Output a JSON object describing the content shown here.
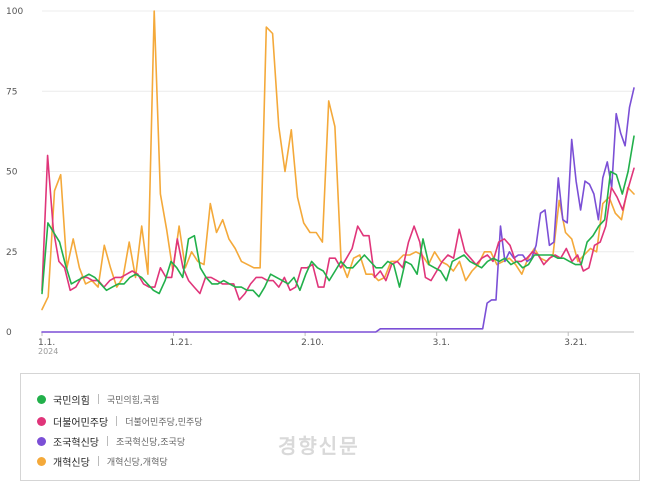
{
  "chart_data": {
    "type": "line",
    "title": "",
    "xlabel": "",
    "ylabel": "",
    "ylim": [
      0,
      100
    ],
    "y_ticks": [
      0,
      25,
      50,
      75,
      100
    ],
    "x_range": [
      "2024-01-01",
      "2024-03-31"
    ],
    "x_ticks": [
      {
        "date": "2024-01-01",
        "label": "1.1.",
        "sublabel": "2024"
      },
      {
        "date": "2024-01-21",
        "label": "1.21."
      },
      {
        "date": "2024-02-10",
        "label": "2.10."
      },
      {
        "date": "2024-03-01",
        "label": "3.1."
      },
      {
        "date": "2024-03-21",
        "label": "3.21."
      }
    ],
    "grid": "horizontal",
    "series": [
      {
        "name": "국민의힘",
        "terms": "국민의힘,국힘",
        "color": "#22b04b",
        "values": [
          12,
          34,
          31,
          28,
          21,
          15,
          16,
          17,
          18,
          17,
          15,
          13,
          14,
          15,
          15,
          17,
          18,
          17,
          15,
          13,
          12,
          16,
          22,
          20,
          17,
          29,
          30,
          20,
          17,
          15,
          15,
          16,
          15,
          14,
          14,
          13,
          13,
          11,
          14,
          18,
          17,
          16,
          15,
          17,
          13,
          18,
          22,
          20,
          19,
          16,
          19,
          22,
          20,
          20,
          22,
          24,
          22,
          20,
          20,
          22,
          21,
          14,
          22,
          21,
          18,
          29,
          21,
          20,
          19,
          16,
          22,
          23,
          24,
          22,
          21,
          20,
          22,
          23,
          22,
          23,
          21,
          22,
          20,
          21,
          24,
          24,
          24,
          24,
          23,
          23,
          22,
          21,
          21,
          28,
          30,
          33,
          35,
          50,
          49,
          43,
          50,
          61
        ]
      },
      {
        "name": "더불어민주당",
        "terms": "더불어민주당,민주당",
        "color": "#e0357a",
        "values": [
          13,
          55,
          32,
          22,
          20,
          13,
          14,
          17,
          17,
          16,
          16,
          14,
          16,
          17,
          17,
          18,
          19,
          18,
          15,
          14,
          14,
          20,
          17,
          17,
          29,
          20,
          16,
          14,
          12,
          17,
          17,
          16,
          15,
          15,
          15,
          10,
          12,
          15,
          17,
          17,
          16,
          16,
          14,
          17,
          13,
          14,
          20,
          20,
          21,
          14,
          14,
          23,
          23,
          20,
          23,
          26,
          33,
          30,
          30,
          17,
          19,
          16,
          21,
          22,
          20,
          28,
          33,
          28,
          17,
          16,
          19,
          22,
          24,
          23,
          32,
          25,
          23,
          21,
          23,
          24,
          22,
          28,
          29,
          27,
          22,
          22,
          23,
          25,
          24,
          21,
          23,
          24,
          23,
          26,
          22,
          24,
          19,
          20,
          27,
          28,
          33,
          45,
          42,
          38,
          45,
          51
        ]
      },
      {
        "name": "조국혁신당",
        "terms": "조국혁신당,조국당",
        "color": "#7b4fd6",
        "values": [
          0,
          0,
          0,
          0,
          0,
          0,
          0,
          0,
          0,
          0,
          0,
          0,
          0,
          0,
          0,
          0,
          0,
          0,
          0,
          0,
          0,
          0,
          0,
          0,
          0,
          0,
          0,
          0,
          0,
          0,
          0,
          0,
          0,
          0,
          0,
          0,
          0,
          0,
          0,
          0,
          0,
          0,
          0,
          0,
          0,
          0,
          0,
          0,
          0,
          0,
          0,
          0,
          0,
          0,
          0,
          0,
          0,
          0,
          0,
          0,
          0,
          0,
          0,
          0,
          0,
          0,
          0,
          0,
          0,
          0,
          0,
          0,
          0,
          0,
          0,
          0,
          1,
          1,
          1,
          1,
          1,
          1,
          1,
          1,
          1,
          1,
          1,
          1,
          1,
          1,
          1,
          1,
          1,
          1,
          1,
          1,
          1,
          1,
          1,
          1,
          9,
          10,
          10,
          33,
          22,
          25,
          23,
          24,
          24,
          22,
          23,
          27,
          37,
          38,
          27,
          28,
          48,
          35,
          34,
          60,
          47,
          38,
          47,
          46,
          43,
          35,
          48,
          53,
          45,
          68,
          62,
          58,
          70,
          76
        ]
      },
      {
        "name": "개혁신당",
        "terms": "개혁신당,개혁당",
        "color": "#f4a93a",
        "values": [
          7,
          11,
          44,
          49,
          20,
          29,
          20,
          15,
          16,
          14,
          27,
          20,
          14,
          17,
          28,
          17,
          33,
          18,
          100,
          43,
          32,
          19,
          33,
          20,
          25,
          22,
          21,
          40,
          31,
          35,
          29,
          26,
          22,
          21,
          20,
          20,
          95,
          93,
          64,
          50,
          63,
          42,
          34,
          31,
          31,
          28,
          72,
          64,
          22,
          17,
          23,
          24,
          18,
          18,
          16,
          17,
          22,
          22,
          24,
          24,
          25,
          24,
          21,
          25,
          22,
          21,
          19,
          22,
          16,
          19,
          21,
          25,
          25,
          21,
          22,
          23,
          21,
          18,
          23,
          26,
          23,
          22,
          24,
          41,
          31,
          29,
          22,
          24,
          26,
          25,
          40,
          42,
          37,
          35,
          45,
          43
        ]
      }
    ]
  },
  "watermark": "경향신문"
}
